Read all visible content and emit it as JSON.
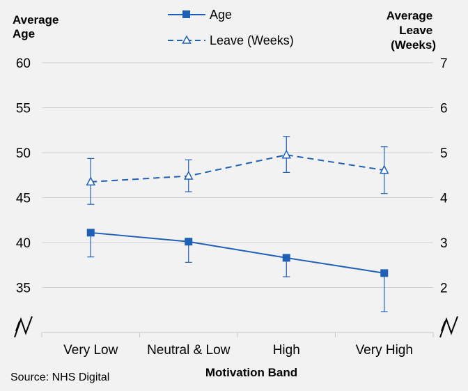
{
  "chart_data": {
    "type": "line",
    "title": "",
    "xlabel": "Motivation Band",
    "categories": [
      "Very Low",
      "Neutral & Low",
      "High",
      "Very High"
    ],
    "ylabel_left": "Average Age",
    "ylabel_right": [
      "Average",
      "Leave",
      "(Weeks)"
    ],
    "ylim_left": [
      30,
      60
    ],
    "yticks_left": [
      35,
      40,
      45,
      50,
      55,
      60
    ],
    "ylim_right": [
      1,
      7
    ],
    "yticks_right": [
      2,
      3,
      4,
      5,
      6,
      7
    ],
    "axis_break": true,
    "grid": true,
    "legend_position": "top-center",
    "source": "Source: NHS Digital",
    "colors": {
      "series": "#1f5fb5",
      "grid": "#d0d0d0",
      "background": "#f2f2f2"
    },
    "series": [
      {
        "name": "Age",
        "axis": "left",
        "marker": "square",
        "line": "solid",
        "values": [
          41.1,
          40.1,
          38.3,
          36.6
        ],
        "error_low": [
          38.4,
          37.8,
          36.2,
          32.3
        ],
        "error_high": [
          41.1,
          40.1,
          38.3,
          36.6
        ]
      },
      {
        "name": "Leave (Weeks)",
        "axis": "right",
        "marker": "triangle-open",
        "line": "dashed",
        "values": [
          4.35,
          4.48,
          4.95,
          4.61
        ],
        "error_low": [
          3.85,
          4.13,
          4.56,
          4.09
        ],
        "error_high": [
          4.87,
          4.84,
          5.36,
          5.13
        ]
      }
    ]
  }
}
